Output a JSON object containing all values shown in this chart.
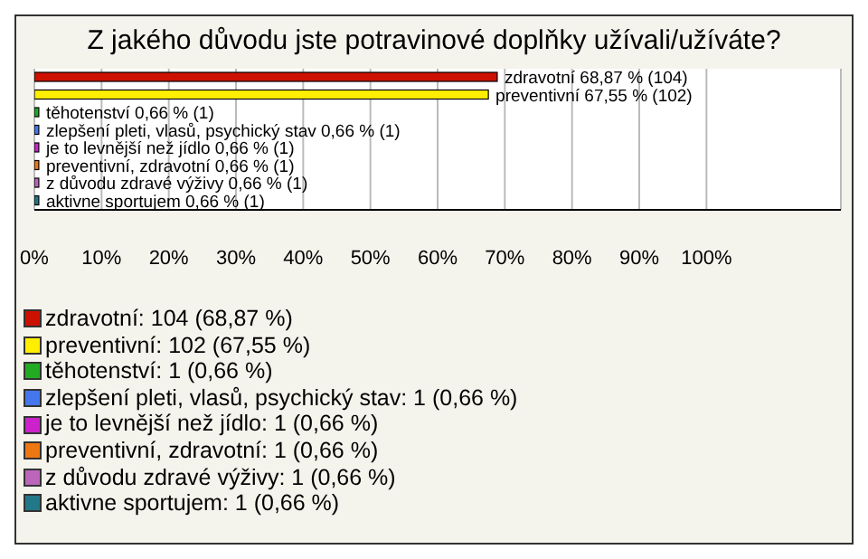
{
  "chart_data": {
    "type": "bar",
    "orientation": "horizontal",
    "stacked": true,
    "title": "Z jakého důvodu jste potravinové doplňky užívali/užíváte?",
    "categories": [
      null,
      null,
      null,
      null,
      null,
      null,
      null,
      null
    ],
    "series": [
      {
        "name": "zdravotní: 104 (68,87 %)",
        "color": "#cc1100",
        "values": [
          68.87,
          null,
          null,
          null,
          null,
          null,
          null,
          null
        ],
        "value_labels": [
          "zdravotní 68,87 % (104)",
          null,
          null,
          null,
          null,
          null,
          null,
          null
        ]
      },
      {
        "name": "preventivní: 102 (67,55 %)",
        "color": "#ffee00",
        "values": [
          null,
          67.55,
          null,
          null,
          null,
          null,
          null,
          null
        ],
        "value_labels": [
          null,
          "preventivní 67,55 % (102)",
          null,
          null,
          null,
          null,
          null,
          null
        ]
      },
      {
        "name": "těhotenství: 1 (0,66 %)",
        "color": "#22aa22",
        "values": [
          null,
          null,
          0.66,
          null,
          null,
          null,
          null,
          null
        ],
        "value_labels": [
          null,
          null,
          "těhotenství 0,66 % (1)",
          null,
          null,
          null,
          null,
          null
        ]
      },
      {
        "name": "zlepšení pleti, vlasů, psychický stav: 1 (0,66 %)",
        "color": "#4477ee",
        "values": [
          null,
          null,
          null,
          0.66,
          null,
          null,
          null,
          null
        ],
        "value_labels": [
          null,
          null,
          null,
          "zlepšení pleti, vlasů, psychický stav 0,66 % (1)",
          null,
          null,
          null,
          null
        ]
      },
      {
        "name": "je to levnější než jídlo: 1 (0,66 %)",
        "color": "#cc22cc",
        "values": [
          null,
          null,
          null,
          null,
          0.66,
          null,
          null,
          null
        ],
        "value_labels": [
          null,
          null,
          null,
          null,
          "je to levnější než jídlo 0,66 % (1)",
          null,
          null,
          null
        ]
      },
      {
        "name": "preventivní, zdravotní: 1 (0,66 %)",
        "color": "#ee7711",
        "values": [
          null,
          null,
          null,
          null,
          null,
          0.66,
          null,
          null
        ],
        "value_labels": [
          null,
          null,
          null,
          null,
          null,
          "preventivní, zdravotní 0,66 % (1)",
          null,
          null
        ]
      },
      {
        "name": "z důvodu zdravé výživy: 1 (0,66 %)",
        "color": "#bb66bb",
        "values": [
          null,
          null,
          null,
          null,
          null,
          null,
          0.66,
          null
        ],
        "value_labels": [
          null,
          null,
          null,
          null,
          null,
          null,
          "z důvodu zdravé výživy 0,66 % (1)",
          null
        ]
      },
      {
        "name": "aktivne sportujem: 1 (0,66 %)",
        "color": "#227788",
        "values": [
          null,
          null,
          null,
          null,
          null,
          null,
          null,
          0.66
        ],
        "value_labels": [
          null,
          null,
          null,
          null,
          null,
          null,
          null,
          "aktivne sportujem 0,66 % (1)"
        ]
      }
    ],
    "xlim": [
      0,
      120
    ],
    "xticks": [
      {
        "value": 0,
        "label": "0%"
      },
      {
        "value": 10,
        "label": "10%"
      },
      {
        "value": 20,
        "label": "20%"
      },
      {
        "value": 30,
        "label": "30%"
      },
      {
        "value": 40,
        "label": "40%"
      },
      {
        "value": 50,
        "label": "50%"
      },
      {
        "value": 60,
        "label": "60%"
      },
      {
        "value": 70,
        "label": "70%"
      },
      {
        "value": 80,
        "label": "80%"
      },
      {
        "value": 90,
        "label": "90%"
      },
      {
        "value": 100,
        "label": "100%"
      }
    ],
    "grid": "x",
    "legend": "bottom"
  }
}
